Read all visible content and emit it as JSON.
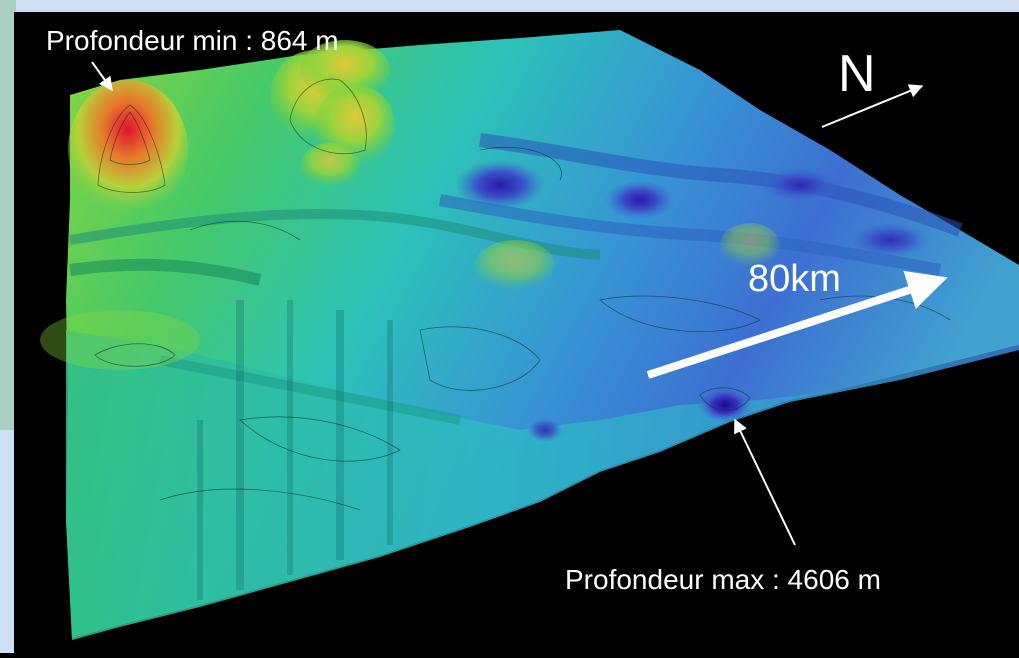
{
  "labels": {
    "min_depth": "Profondeur min : 864 m",
    "max_depth": "Profondeur max : 4606 m",
    "scale": "80km",
    "north": "N"
  },
  "colors": {
    "background": "#000000",
    "frame": "#cfe0f4",
    "shallow": "#d81c2e",
    "mid_shallow": "#6fcf3a",
    "mid": "#2fc9b6",
    "deep": "#3e7fd6",
    "deepest": "#3a2fb8",
    "annotation": "#ffffff"
  },
  "icons": [
    "north-arrow-icon",
    "scale-arrow-icon",
    "pointer-arrow-icon"
  ]
}
